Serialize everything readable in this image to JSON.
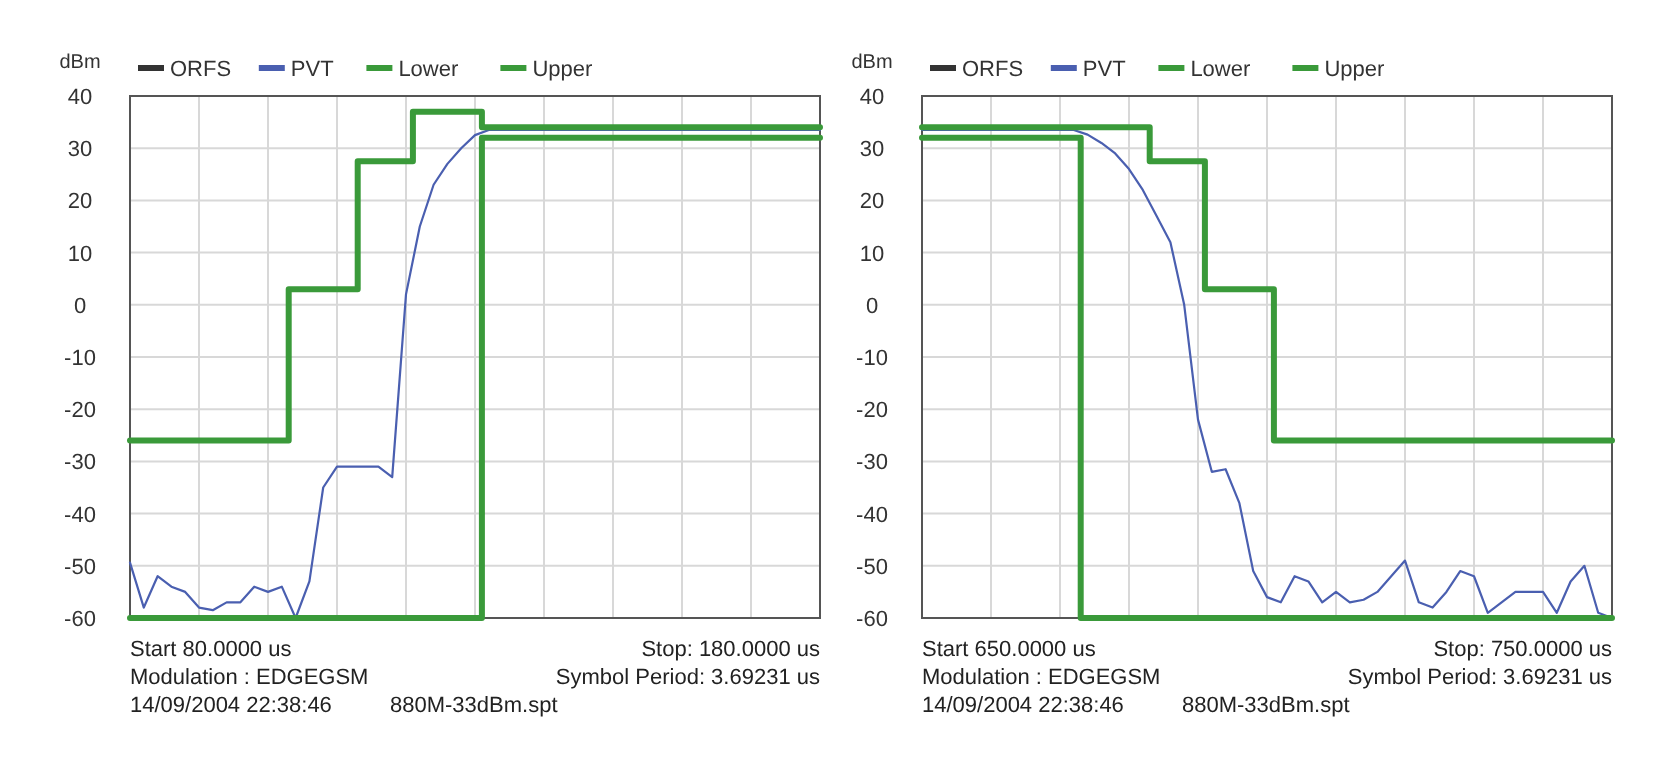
{
  "chart_data": [
    {
      "type": "line",
      "ylabel": "dBm",
      "categories": [
        null,
        null,
        null,
        null,
        null,
        null,
        null,
        null,
        null,
        null,
        null,
        null,
        null,
        null,
        null,
        null,
        null,
        null,
        null,
        null,
        null,
        null,
        null,
        null,
        null,
        null,
        null,
        null,
        null,
        null,
        null,
        null,
        null,
        null,
        null,
        null,
        null,
        null,
        null,
        null,
        null,
        null,
        null,
        null,
        null,
        null,
        null,
        null,
        null,
        null,
        null
      ],
      "ylim": [
        -60,
        40
      ],
      "yticks": [
        -60,
        -50,
        -40,
        -30,
        -20,
        -10,
        0,
        10,
        20,
        30,
        40
      ],
      "tick_labels": "y",
      "grid": true,
      "legend": "top left",
      "marker": "none",
      "line_style": "solid",
      "series": [
        {
          "name": "ORFS",
          "color": "#333333",
          "values": [
            null,
            null,
            null,
            null,
            null,
            null,
            null,
            null,
            null,
            null,
            null,
            null,
            null,
            null,
            null,
            null,
            null,
            null,
            null,
            null,
            null,
            null,
            null,
            null,
            null,
            null,
            null,
            null,
            null,
            null,
            null,
            null,
            null,
            null,
            null,
            null,
            null,
            null,
            null,
            null,
            null,
            null,
            null,
            null,
            null,
            null,
            null,
            null,
            null,
            null,
            null
          ]
        },
        {
          "name": "PVT",
          "color": "#4a5fb0",
          "values": [
            -49.4,
            -58,
            -52,
            -54,
            -55,
            -58,
            -58.5,
            -57,
            -57,
            -54,
            -55,
            -54,
            -60,
            -53,
            -35,
            -31,
            -31,
            -31,
            -31,
            -33,
            2,
            15,
            23,
            27,
            30,
            32.5,
            33.5,
            33.5,
            33.5,
            33.5,
            33.5,
            33.5,
            33.5,
            33.5,
            33.5,
            33.5,
            33.5,
            33.5,
            33.5,
            33.5,
            33.5,
            33.5,
            33.5,
            33.5,
            33.5,
            33.5,
            33.5,
            33.5,
            33.5,
            33.5,
            33.5
          ]
        },
        {
          "name": "Lower",
          "type": "step",
          "color": "#3a9a3a",
          "values": [
            -60,
            -60,
            -60,
            -60,
            -60,
            -60,
            -60,
            -60,
            -60,
            -60,
            -60,
            -60,
            -60,
            -60,
            -60,
            -60,
            -60,
            -60,
            -60,
            -60,
            -60,
            -60,
            -60,
            -60,
            -60,
            -60,
            32,
            32,
            32,
            32,
            32,
            32,
            32,
            32,
            32,
            32,
            32,
            32,
            32,
            32,
            32,
            32,
            32,
            32,
            32,
            32,
            32,
            32,
            32,
            32,
            32
          ]
        },
        {
          "name": "Upper",
          "type": "step",
          "color": "#3a9a3a",
          "values": [
            -26,
            -26,
            -26,
            -26,
            -26,
            -26,
            -26,
            -26,
            -26,
            -26,
            -26,
            -26,
            3,
            3,
            3,
            3,
            3,
            27.5,
            27.5,
            27.5,
            27.5,
            37,
            37,
            37,
            37,
            37,
            34,
            34,
            34,
            34,
            34,
            34,
            34,
            34,
            34,
            34,
            34,
            34,
            34,
            34,
            34,
            34,
            34,
            34,
            34,
            34,
            34,
            34,
            34,
            34,
            34
          ]
        }
      ],
      "annotations": [
        "Start 80.0000 us",
        "Stop: 180.0000 us",
        "Modulation : EDGEGSM",
        "Symbol Period: 3.69231 us",
        "14/09/2004 22:38:46",
        "880M-33dBm.spt"
      ]
    },
    {
      "type": "line",
      "ylabel": "dBm",
      "categories": [
        null,
        null,
        null,
        null,
        null,
        null,
        null,
        null,
        null,
        null,
        null,
        null,
        null,
        null,
        null,
        null,
        null,
        null,
        null,
        null,
        null,
        null,
        null,
        null,
        null,
        null,
        null,
        null,
        null,
        null,
        null,
        null,
        null,
        null,
        null,
        null,
        null,
        null,
        null,
        null,
        null,
        null,
        null,
        null,
        null,
        null,
        null,
        null,
        null,
        null,
        null
      ],
      "ylim": [
        -60,
        40
      ],
      "yticks": [
        -60,
        -50,
        -40,
        -30,
        -20,
        -10,
        0,
        10,
        20,
        30,
        40
      ],
      "tick_labels": "y",
      "grid": true,
      "legend": "top left",
      "marker": "none",
      "line_style": "solid",
      "series": [
        {
          "name": "ORFS",
          "color": "#333333",
          "values": [
            null,
            null,
            null,
            null,
            null,
            null,
            null,
            null,
            null,
            null,
            null,
            null,
            null,
            null,
            null,
            null,
            null,
            null,
            null,
            null,
            null,
            null,
            null,
            null,
            null,
            null,
            null,
            null,
            null,
            null,
            null,
            null,
            null,
            null,
            null,
            null,
            null,
            null,
            null,
            null,
            null,
            null,
            null,
            null,
            null,
            null,
            null,
            null,
            null,
            null,
            null
          ]
        },
        {
          "name": "PVT",
          "color": "#4a5fb0",
          "values": [
            33.5,
            33.5,
            33.5,
            33.5,
            33.5,
            33.5,
            33.5,
            33.5,
            33.5,
            33.5,
            33.5,
            33.5,
            32.6,
            31,
            29,
            26,
            22,
            17,
            12,
            0,
            -22,
            -32,
            -31.5,
            -38,
            -51,
            -56,
            -57,
            -52,
            -53,
            -57,
            -55,
            -57,
            -56.5,
            -55,
            -52,
            -49,
            -57,
            -58,
            -55,
            -51,
            -52,
            -59,
            -57,
            -55,
            -55,
            -55,
            -59,
            -53,
            -50,
            -59,
            -60
          ]
        },
        {
          "name": "Lower",
          "type": "step",
          "color": "#3a9a3a",
          "values": [
            32,
            32,
            32,
            32,
            32,
            32,
            32,
            32,
            32,
            32,
            32,
            32,
            -60,
            -60,
            -60,
            -60,
            -60,
            -60,
            -60,
            -60,
            -60,
            -60,
            -60,
            -60,
            -60,
            -60,
            -60,
            -60,
            -60,
            -60,
            -60,
            -60,
            -60,
            -60,
            -60,
            -60,
            -60,
            -60,
            -60,
            -60,
            -60,
            -60,
            -60,
            -60,
            -60,
            -60,
            -60,
            -60,
            -60,
            -60,
            -60
          ]
        },
        {
          "name": "Upper",
          "type": "step",
          "color": "#3a9a3a",
          "values": [
            34,
            34,
            34,
            34,
            34,
            34,
            34,
            34,
            34,
            34,
            34,
            34,
            34,
            34,
            34,
            34,
            34,
            27.5,
            27.5,
            27.5,
            27.5,
            3,
            3,
            3,
            3,
            3,
            -26,
            -26,
            -26,
            -26,
            -26,
            -26,
            -26,
            -26,
            -26,
            -26,
            -26,
            -26,
            -26,
            -26,
            -26,
            -26,
            -26,
            -26,
            -26,
            -26,
            -26,
            -26,
            -26,
            -26,
            -26
          ]
        }
      ],
      "annotations": [
        "Start 650.0000 us",
        "Stop: 750.0000 us",
        "Modulation : EDGEGSM",
        "Symbol Period: 3.69231 us",
        "14/09/2004 22:38:46",
        "880M-33dBm.spt"
      ]
    }
  ]
}
